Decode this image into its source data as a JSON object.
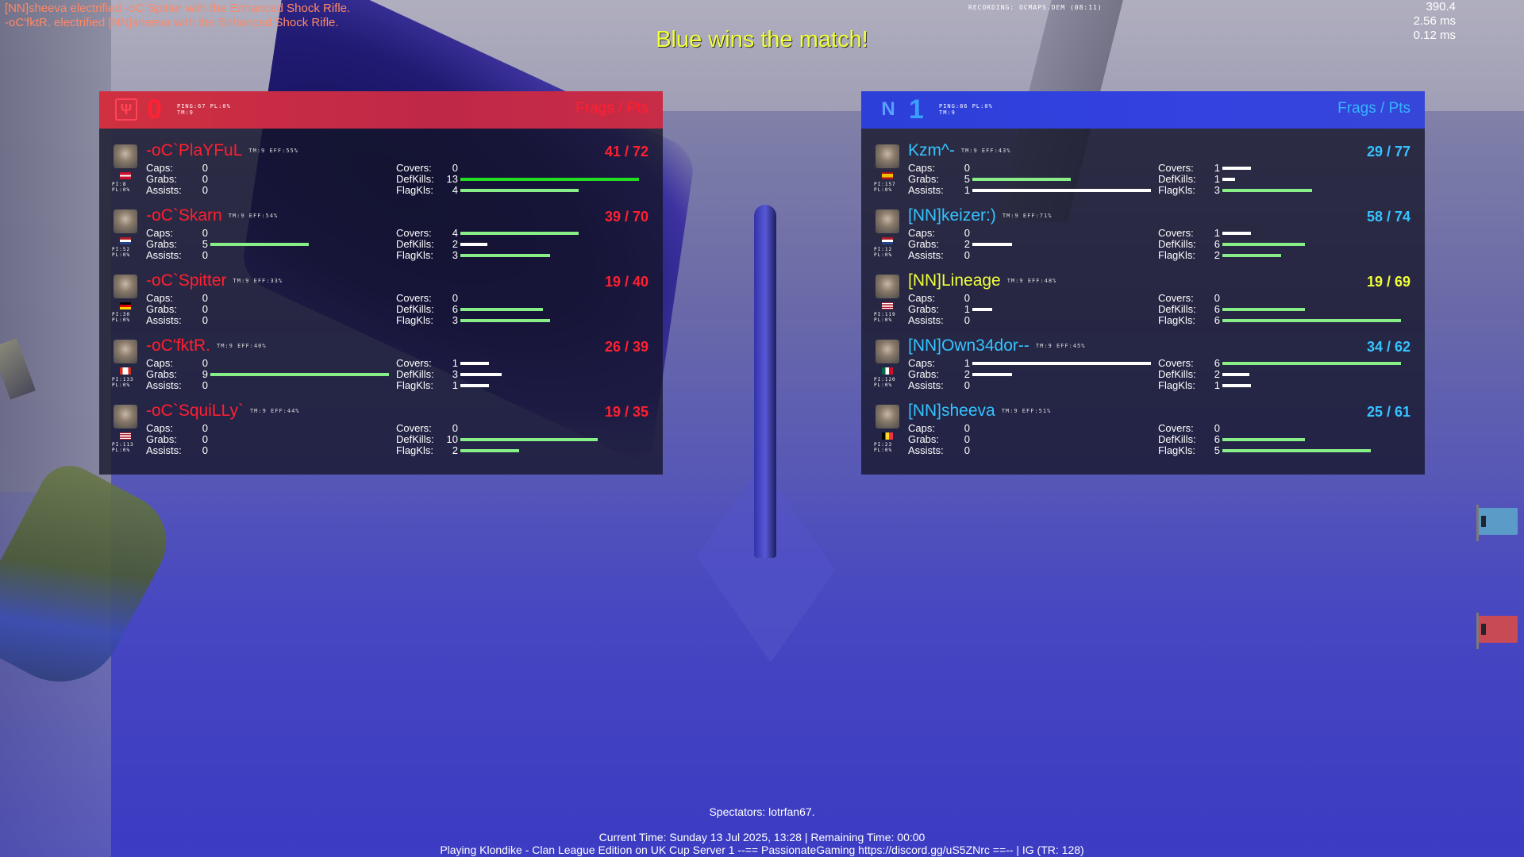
{
  "killfeed": [
    "[NN]sheeva electrified -oC`Spitter with the Enhanced Shock Rifle.",
    "-oC'fktR. electrified [NN]sheeva with the Enhanced Shock Rifle."
  ],
  "recording": "RECORDING: OCMAPS.DEM (08:11)",
  "perf": [
    "390.4",
    "2.56 ms",
    "0.12 ms"
  ],
  "headline": "Blue wins the match!",
  "colors": {
    "red": "#ff2030",
    "blue": "#35c4ff",
    "highlight": "#f0ff3a",
    "bar_green": "#88ee88",
    "bar_white": "#ffffff"
  },
  "labels": {
    "caps": "Caps:",
    "grabs": "Grabs:",
    "assists": "Assists:",
    "covers": "Covers:",
    "defkills": "DefKills:",
    "flagkls": "FlagKls:"
  },
  "teams": [
    {
      "id": "red",
      "logo_icon": "lightning-shield-icon",
      "logo_glyph": "Ψ",
      "score": "0",
      "info_line1": "PING:67 PL:0%",
      "info_line2": "TM:9",
      "header_label": "Frags / Pts",
      "players": [
        {
          "name": "-oC`PlaYFuL",
          "tm": "TM:9 EFF:55%",
          "score": "41 / 72",
          "pi": "PI:8",
          "pl": "PL:0%",
          "flag": "denmark",
          "caps": "0",
          "grabs": "0",
          "assists": "0",
          "covers": "0",
          "defkills": "13",
          "flagkls": "4",
          "grabs_bar": 0,
          "covers_bar": 0,
          "defkills_bar": 1.0,
          "flagkls_bar": 0.66,
          "defkills_style": "bright",
          "highlight": false
        },
        {
          "name": "-oC`Skarn",
          "tm": "TM:9 EFF:54%",
          "score": "39 / 70",
          "pi": "PI:52",
          "pl": "PL:0%",
          "flag": "netherlands",
          "caps": "0",
          "grabs": "5",
          "assists": "0",
          "covers": "4",
          "defkills": "2",
          "flagkls": "3",
          "grabs_bar": 0.55,
          "covers_bar": 0.66,
          "defkills_bar": 0.15,
          "flagkls_bar": 0.5,
          "highlight": false
        },
        {
          "name": "-oC`Spitter",
          "tm": "TM:9 EFF:33%",
          "score": "19 / 40",
          "pi": "PI:30",
          "pl": "PL:0%",
          "flag": "germany",
          "caps": "0",
          "grabs": "0",
          "assists": "0",
          "covers": "0",
          "defkills": "6",
          "flagkls": "3",
          "grabs_bar": 0,
          "covers_bar": 0,
          "defkills_bar": 0.46,
          "flagkls_bar": 0.5,
          "highlight": false
        },
        {
          "name": "-oC'fktR.",
          "tm": "TM:9 EFF:40%",
          "score": "26 / 39",
          "pi": "PI:133",
          "pl": "PL:0%",
          "flag": "canada",
          "caps": "0",
          "grabs": "9",
          "assists": "0",
          "covers": "1",
          "defkills": "3",
          "flagkls": "1",
          "grabs_bar": 1.0,
          "covers_bar": 0.16,
          "defkills_bar": 0.23,
          "flagkls_bar": 0.16,
          "highlight": false
        },
        {
          "name": "-oC`SquiLLy`",
          "tm": "TM:9 EFF:44%",
          "score": "19 / 35",
          "pi": "PI:113",
          "pl": "PL:0%",
          "flag": "usa",
          "caps": "0",
          "grabs": "0",
          "assists": "0",
          "covers": "0",
          "defkills": "10",
          "flagkls": "2",
          "grabs_bar": 0,
          "covers_bar": 0,
          "defkills_bar": 0.77,
          "flagkls_bar": 0.33,
          "highlight": false
        }
      ]
    },
    {
      "id": "blue",
      "logo_icon": "nn-clan-icon",
      "logo_glyph": "N",
      "score": "1",
      "info_line1": "PING:86 PL:0%",
      "info_line2": "TM:9",
      "header_label": "Frags / Pts",
      "players": [
        {
          "name": "Kzm^-",
          "tm": "TM:9 EFF:43%",
          "score": "29 / 77",
          "pi": "PI:157",
          "pl": "PL:0%",
          "flag": "spain",
          "caps": "0",
          "grabs": "5",
          "assists": "1",
          "covers": "1",
          "defkills": "1",
          "flagkls": "3",
          "grabs_bar": 0.55,
          "assists_bar": 1.0,
          "covers_bar": 0.16,
          "defkills_bar": 0.07,
          "flagkls_bar": 0.5,
          "highlight": false
        },
        {
          "name": "[NN]keizer:)",
          "tm": "TM:9 EFF:71%",
          "score": "58 / 74",
          "pi": "PI:12",
          "pl": "PL:0%",
          "flag": "netherlands",
          "caps": "0",
          "grabs": "2",
          "assists": "0",
          "covers": "1",
          "defkills": "6",
          "flagkls": "2",
          "grabs_bar": 0.22,
          "covers_bar": 0.16,
          "defkills_bar": 0.46,
          "flagkls_bar": 0.33,
          "highlight": false
        },
        {
          "name": "[NN]Lineage",
          "tm": "TM:9 EFF:48%",
          "score": "19 / 69",
          "pi": "PI:119",
          "pl": "PL:0%",
          "flag": "usa",
          "caps": "0",
          "grabs": "1",
          "assists": "0",
          "covers": "0",
          "defkills": "6",
          "flagkls": "6",
          "grabs_bar": 0.11,
          "covers_bar": 0,
          "defkills_bar": 0.46,
          "flagkls_bar": 1.0,
          "highlight": true
        },
        {
          "name": "[NN]Own34dor--",
          "tm": "TM:9 EFF:45%",
          "score": "34 / 62",
          "pi": "PI:120",
          "pl": "PL:0%",
          "flag": "mexico",
          "caps": "1",
          "grabs": "2",
          "assists": "0",
          "covers": "6",
          "defkills": "2",
          "flagkls": "1",
          "caps_bar": 1.0,
          "grabs_bar": 0.22,
          "covers_bar": 1.0,
          "defkills_bar": 0.15,
          "flagkls_bar": 0.16,
          "highlight": false
        },
        {
          "name": "[NN]sheeva",
          "tm": "TM:9 EFF:51%",
          "score": "25 / 61",
          "pi": "PI:23",
          "pl": "PL:0%",
          "flag": "belgium",
          "caps": "0",
          "grabs": "0",
          "assists": "0",
          "covers": "0",
          "defkills": "6",
          "flagkls": "5",
          "grabs_bar": 0,
          "covers_bar": 0,
          "defkills_bar": 0.46,
          "flagkls_bar": 0.83,
          "highlight": false
        }
      ]
    }
  ],
  "spectators": "Spectators: lotrfan67.",
  "footer_line1": "Current Time: Sunday 13 Jul 2025, 13:28 | Remaining Time: 00:00",
  "footer_line2": "Playing Klondike - Clan League Edition on UK Cup Server 1 --== PassionateGaming https://discord.gg/uS5ZNrc ==-- | IG (TR: 128)"
}
